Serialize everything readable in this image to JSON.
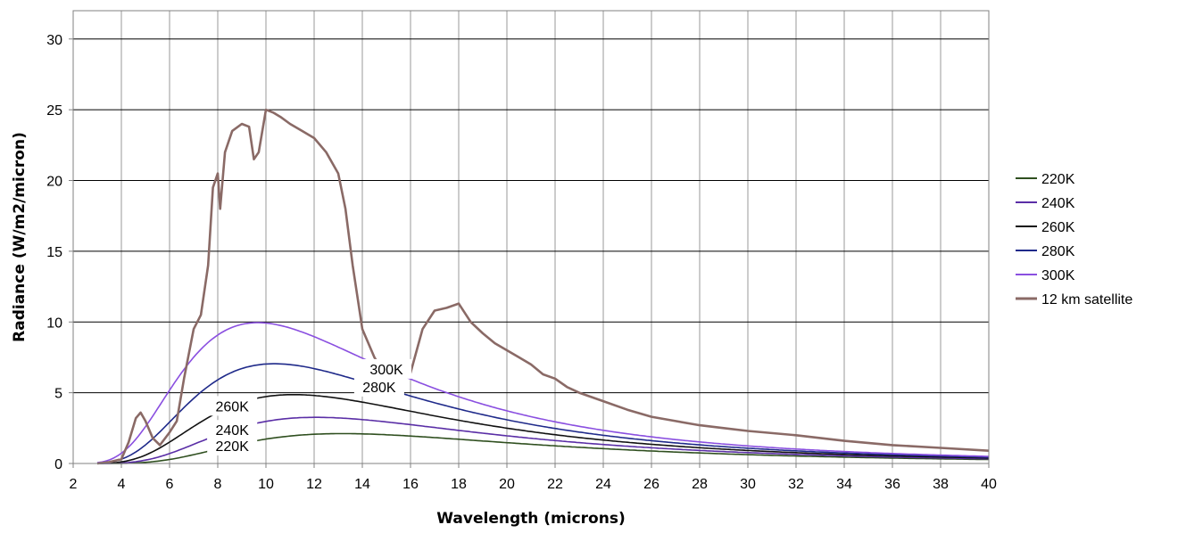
{
  "chart_data": {
    "type": "line",
    "title": "",
    "xlabel": "Wavelength (microns)",
    "ylabel": "Radiance (W/m2/micron)",
    "xlim": [
      2,
      40
    ],
    "ylim": [
      0,
      32
    ],
    "x_ticks": [
      "2",
      "4",
      "6",
      "8",
      "10",
      "12",
      "14",
      "16",
      "18",
      "20",
      "22",
      "24",
      "26",
      "28",
      "30",
      "32",
      "34",
      "36",
      "38",
      "40"
    ],
    "y_ticks": [
      "0",
      "5",
      "10",
      "15",
      "20",
      "25",
      "30"
    ],
    "grid": true,
    "legend_position": "right",
    "series": [
      {
        "name": "220K",
        "color": "#2f4f1f",
        "temperature_K": 220
      },
      {
        "name": "240K",
        "color": "#5a2ea6",
        "temperature_K": 240
      },
      {
        "name": "260K",
        "color": "#111111",
        "temperature_K": 260
      },
      {
        "name": "280K",
        "color": "#1f2a8a",
        "temperature_K": 280
      },
      {
        "name": "300K",
        "color": "#8a4fe0",
        "temperature_K": 300
      },
      {
        "name": "12 km satellite",
        "color": "#8a6a66",
        "x": [
          3.0,
          3.5,
          4.0,
          4.3,
          4.6,
          4.8,
          5.0,
          5.3,
          5.6,
          6.0,
          6.3,
          6.6,
          7.0,
          7.3,
          7.6,
          7.8,
          8.0,
          8.1,
          8.3,
          8.6,
          9.0,
          9.3,
          9.5,
          9.7,
          10.0,
          10.3,
          10.6,
          11.0,
          11.5,
          12.0,
          12.5,
          13.0,
          13.3,
          13.6,
          14.0,
          14.5,
          15.0,
          15.5,
          16.0,
          16.5,
          17.0,
          17.5,
          18.0,
          18.5,
          19.0,
          19.5,
          20.0,
          20.5,
          21.0,
          21.5,
          22.0,
          22.5,
          23.0,
          24.0,
          25.0,
          26.0,
          27.0,
          28.0,
          29.0,
          30.0,
          32.0,
          34.0,
          36.0,
          38.0,
          40.0
        ],
        "y": [
          0.0,
          0.1,
          0.3,
          1.5,
          3.2,
          3.6,
          3.0,
          1.8,
          1.3,
          2.2,
          3.0,
          6.0,
          9.5,
          10.5,
          14.0,
          19.5,
          20.5,
          18.0,
          22.0,
          23.5,
          24.0,
          23.8,
          21.5,
          22.0,
          25.0,
          24.8,
          24.5,
          24.0,
          23.5,
          23.0,
          22.0,
          20.5,
          18.0,
          14.0,
          9.5,
          7.5,
          6.2,
          6.1,
          6.4,
          9.5,
          10.8,
          11.0,
          11.3,
          10.0,
          9.2,
          8.5,
          8.0,
          7.5,
          7.0,
          6.3,
          6.0,
          5.4,
          5.0,
          4.4,
          3.8,
          3.3,
          3.0,
          2.7,
          2.5,
          2.3,
          2.0,
          1.6,
          1.3,
          1.1,
          0.9
        ]
      }
    ],
    "curve_labels": [
      {
        "text": "300K",
        "series": "300K"
      },
      {
        "text": "280K",
        "series": "280K"
      },
      {
        "text": "260K",
        "series": "260K"
      },
      {
        "text": "240K",
        "series": "240K"
      },
      {
        "text": "220K",
        "series": "220K"
      }
    ]
  }
}
